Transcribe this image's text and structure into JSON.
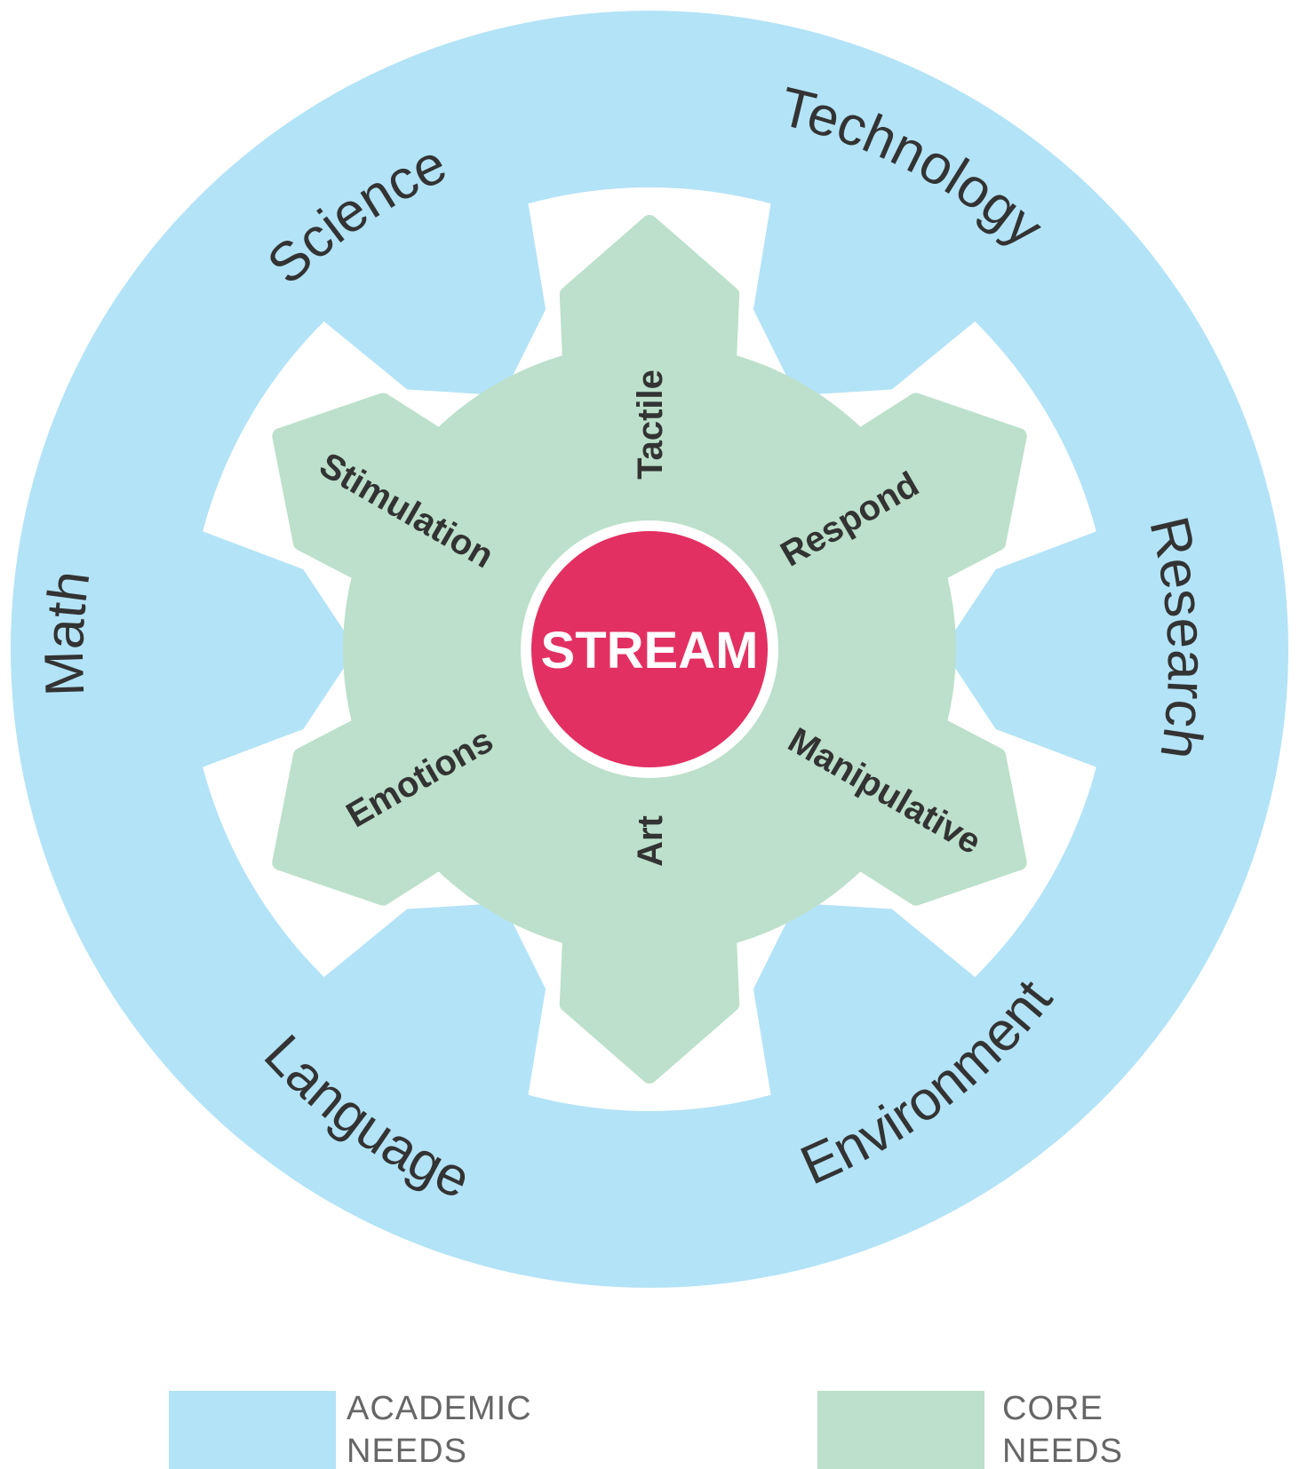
{
  "colors": {
    "academic": "#b3e3f6",
    "core": "#bce0cb",
    "center": "#e33062",
    "text": "#333333",
    "legend_text": "#666666"
  },
  "center": {
    "label": "STREAM"
  },
  "academic_needs": [
    "Science",
    "Technology",
    "Research",
    "Environment",
    "Language",
    "Math"
  ],
  "core_needs": [
    "Tactile",
    "Respond",
    "Manipulative",
    "Art",
    "Emotions",
    "Stimulation"
  ],
  "legend": {
    "academic": {
      "line1": "ACADEMIC",
      "line2": "NEEDS"
    },
    "core": {
      "line1": "CORE",
      "line2": "NEEDS"
    }
  }
}
